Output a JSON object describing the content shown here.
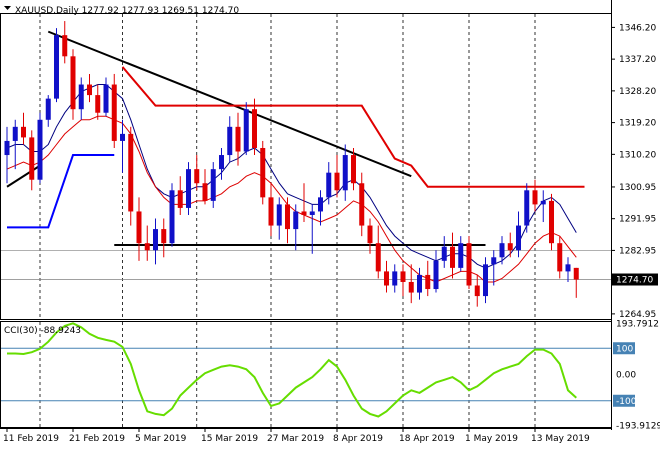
{
  "header": {
    "title": "XAUUSD,Daily  1277.92 1277.93 1269.51 1274.70"
  },
  "chart_data": [
    {
      "type": "candlestick",
      "title": "XAUUSD,Daily  1277.92 1277.93 1269.51 1274.70",
      "price_ticks": [
        "1346.20",
        "1337.20",
        "1328.20",
        "1319.20",
        "1310.20",
        "1300.95",
        "1291.95",
        "1282.95",
        "1264.95"
      ],
      "price_tick_values": [
        1346.2,
        1337.2,
        1328.2,
        1319.2,
        1310.2,
        1300.95,
        1291.95,
        1282.95,
        1264.95
      ],
      "current_price": "1274.70",
      "current_price_value": 1274.7,
      "ylim": [
        1263.5,
        1350
      ],
      "date_labels": [
        "11 Feb 2019",
        "21 Feb 2019",
        "5 Mar 2019",
        "15 Mar 2019",
        "27 Mar 2019",
        "8 Apr 2019",
        "18 Apr 2019",
        "1 May 2019",
        "13 May 2019"
      ],
      "date_label_bars": [
        0,
        8,
        16,
        24,
        32,
        40,
        48,
        56,
        64
      ],
      "candles": [
        [
          1310,
          1318,
          1302,
          1314
        ],
        [
          1314,
          1320,
          1306,
          1318
        ],
        [
          1318,
          1322,
          1313,
          1315
        ],
        [
          1315,
          1317,
          1300,
          1303
        ],
        [
          1303,
          1322,
          1302,
          1320
        ],
        [
          1320,
          1327,
          1318,
          1326
        ],
        [
          1326,
          1346,
          1325,
          1344
        ],
        [
          1344,
          1348,
          1336,
          1338
        ],
        [
          1338,
          1340,
          1320,
          1323
        ],
        [
          1323,
          1332,
          1320,
          1330
        ],
        [
          1330,
          1333,
          1325,
          1327
        ],
        [
          1327,
          1330,
          1320,
          1322
        ],
        [
          1322,
          1332,
          1321,
          1330
        ],
        [
          1330,
          1333,
          1312,
          1314
        ],
        [
          1314,
          1320,
          1305,
          1316
        ],
        [
          1316,
          1318,
          1290,
          1294
        ],
        [
          1294,
          1298,
          1280,
          1285
        ],
        [
          1285,
          1290,
          1280,
          1283
        ],
        [
          1283,
          1292,
          1279,
          1289
        ],
        [
          1289,
          1292,
          1281,
          1285
        ],
        [
          1285,
          1302,
          1284,
          1300
        ],
        [
          1300,
          1304,
          1293,
          1295
        ],
        [
          1295,
          1308,
          1293,
          1306
        ],
        [
          1306,
          1310,
          1300,
          1302
        ],
        [
          1302,
          1306,
          1296,
          1297
        ],
        [
          1297,
          1308,
          1295,
          1306
        ],
        [
          1306,
          1312,
          1303,
          1310
        ],
        [
          1310,
          1321,
          1308,
          1318
        ],
        [
          1318,
          1322,
          1307,
          1311
        ],
        [
          1311,
          1325,
          1310,
          1323
        ],
        [
          1323,
          1326,
          1310,
          1312
        ],
        [
          1312,
          1314,
          1296,
          1298
        ],
        [
          1298,
          1302,
          1287,
          1290
        ],
        [
          1290,
          1298,
          1286,
          1296
        ],
        [
          1296,
          1298,
          1285,
          1289
        ],
        [
          1289,
          1296,
          1283,
          1294
        ],
        [
          1294,
          1302,
          1291,
          1293
        ],
        [
          1293,
          1296,
          1282,
          1294
        ],
        [
          1294,
          1300,
          1290,
          1298
        ],
        [
          1298,
          1308,
          1296,
          1305
        ],
        [
          1305,
          1310,
          1298,
          1300
        ],
        [
          1300,
          1313,
          1297,
          1310
        ],
        [
          1310,
          1312,
          1300,
          1302
        ],
        [
          1302,
          1305,
          1287,
          1290
        ],
        [
          1290,
          1292,
          1282,
          1285
        ],
        [
          1285,
          1290,
          1275,
          1277
        ],
        [
          1277,
          1280,
          1271,
          1273
        ],
        [
          1273,
          1279,
          1271,
          1277
        ],
        [
          1277,
          1279,
          1270,
          1274
        ],
        [
          1274,
          1279,
          1268,
          1271
        ],
        [
          1271,
          1278,
          1269,
          1276
        ],
        [
          1276,
          1280,
          1270,
          1272
        ],
        [
          1272,
          1283,
          1271,
          1280
        ],
        [
          1280,
          1287,
          1278,
          1284
        ],
        [
          1284,
          1288,
          1275,
          1278
        ],
        [
          1278,
          1287,
          1277,
          1285
        ],
        [
          1285,
          1287,
          1272,
          1273
        ],
        [
          1273,
          1276,
          1267,
          1270
        ],
        [
          1270,
          1281,
          1268,
          1279
        ],
        [
          1279,
          1283,
          1273,
          1281
        ],
        [
          1281,
          1287,
          1279,
          1285
        ],
        [
          1285,
          1288,
          1281,
          1283
        ],
        [
          1283,
          1294,
          1281,
          1290
        ],
        [
          1290,
          1302,
          1288,
          1300
        ],
        [
          1300,
          1303,
          1294,
          1296
        ],
        [
          1296,
          1300,
          1291,
          1297
        ],
        [
          1297,
          1299,
          1283,
          1285
        ],
        [
          1285,
          1287,
          1275,
          1277
        ],
        [
          1277,
          1281,
          1274,
          1279
        ],
        [
          1278,
          1278,
          1269.5,
          1274.7
        ]
      ],
      "trendlines": [
        {
          "color": "#000000",
          "from": [
            5,
            1345
          ],
          "to": [
            49,
            1304
          ]
        },
        {
          "color": "#000000",
          "from": [
            13,
            1284.5
          ],
          "to": [
            58,
            1284.5
          ]
        },
        {
          "color": "#000000",
          "from": [
            0,
            1301
          ],
          "to": [
            4,
            1307
          ]
        }
      ],
      "red_line": [
        [
          14,
          1335
        ],
        [
          18,
          1324
        ],
        [
          43,
          1324
        ],
        [
          47,
          1309
        ],
        [
          49,
          1307
        ],
        [
          51,
          1301
        ],
        [
          70,
          1301
        ]
      ],
      "blue_step": [
        [
          0,
          1289.5
        ],
        [
          5,
          1289.5
        ],
        [
          8,
          1310
        ],
        [
          13,
          1310
        ]
      ],
      "ma_navy": [
        1312,
        1313,
        1313,
        1311,
        1311,
        1313,
        1318,
        1322,
        1325,
        1328,
        1329,
        1330,
        1330,
        1328,
        1326,
        1320,
        1313,
        1306,
        1301,
        1299,
        1298,
        1299,
        1300,
        1301,
        1301,
        1303,
        1305,
        1308,
        1309,
        1311,
        1312,
        1310,
        1306,
        1302,
        1299,
        1298,
        1297,
        1296,
        1296,
        1298,
        1299,
        1302,
        1303,
        1301,
        1298,
        1294,
        1290,
        1287,
        1285,
        1283,
        1282,
        1281,
        1280,
        1281,
        1282,
        1282,
        1281,
        1279,
        1278,
        1279,
        1280,
        1282,
        1285,
        1290,
        1294,
        1297,
        1298,
        1296,
        1292,
        1288
      ],
      "ma_red": [
        1306,
        1307,
        1308,
        1307,
        1308,
        1310,
        1313,
        1316,
        1318,
        1320,
        1320,
        1321,
        1321,
        1320,
        1319,
        1316,
        1311,
        1305,
        1301,
        1298,
        1296,
        1296,
        1296,
        1297,
        1297,
        1298,
        1299,
        1301,
        1302,
        1304,
        1305,
        1304,
        1302,
        1299,
        1296,
        1294,
        1293,
        1292,
        1291,
        1292,
        1293,
        1295,
        1297,
        1296,
        1294,
        1291,
        1287,
        1283,
        1280,
        1278,
        1276,
        1275,
        1274,
        1275,
        1276,
        1277,
        1277,
        1276,
        1274,
        1274,
        1275,
        1277,
        1279,
        1282,
        1285,
        1287,
        1288,
        1287,
        1284,
        1281
      ],
      "vgrid_bars": [
        4,
        14,
        23,
        32,
        40,
        48,
        56,
        64
      ],
      "hgrid_values": [
        1282.95,
        1274.7
      ]
    },
    {
      "type": "line",
      "title": "CCI(30) -88.9243",
      "series_name": "CCI(30)",
      "current_value": "-88.9243",
      "ticks": [
        "193.7912",
        "100",
        "0.00",
        "-100",
        "-193.9129"
      ],
      "tick_values": [
        193.79,
        100,
        0,
        -100,
        -193.91
      ],
      "ylim": [
        -200,
        200
      ],
      "levels": [
        100,
        -100
      ],
      "values": [
        80,
        80,
        78,
        85,
        98,
        125,
        160,
        185,
        195,
        180,
        155,
        140,
        132,
        125,
        105,
        40,
        -60,
        -140,
        -150,
        -155,
        -130,
        -80,
        -50,
        -20,
        5,
        18,
        30,
        35,
        30,
        20,
        -10,
        -70,
        -120,
        -110,
        -80,
        -50,
        -30,
        -10,
        20,
        55,
        30,
        -20,
        -80,
        -130,
        -150,
        -160,
        -140,
        -110,
        -80,
        -60,
        -70,
        -50,
        -30,
        -20,
        -10,
        -30,
        -60,
        -45,
        -20,
        5,
        20,
        30,
        40,
        70,
        95,
        95,
        80,
        40,
        -60,
        -88.9
      ]
    }
  ]
}
